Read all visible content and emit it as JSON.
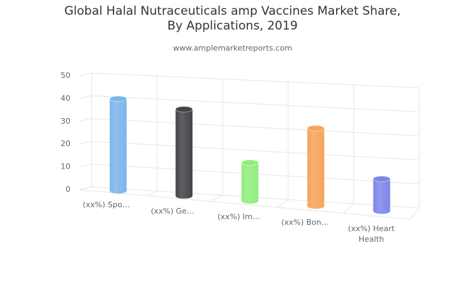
{
  "chart_data": {
    "type": "cylinder",
    "title": "Global Halal Nutraceuticals amp Vaccines Market Share, By Applications, 2019",
    "subtitle": "www.amplemarketreports.com",
    "categories": [
      "(xx%) Spo…",
      "(xx%) Ge…",
      "(xx%) Im…",
      "(xx%) Bon…",
      "(xx%) Heart Health"
    ],
    "values": [
      40,
      37,
      16,
      32,
      13
    ],
    "colors": [
      "#7cb5ec",
      "#434348",
      "#90ed7d",
      "#f7a35c",
      "#8085e9"
    ],
    "ylim": [
      0,
      50
    ],
    "yticks": [
      0,
      10,
      20,
      30,
      40,
      50
    ],
    "grid": true
  }
}
